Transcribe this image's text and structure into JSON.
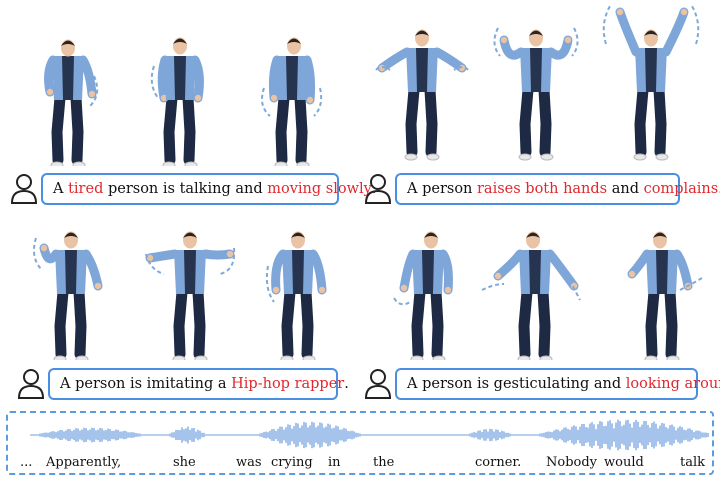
{
  "colors": {
    "accent": "#4a90e2",
    "highlight": "#e0282e",
    "shirt": "#7ea6d8",
    "jeans": "#1e2a44",
    "arrow": "#7fa8d8"
  },
  "panels": [
    {
      "id": "tired",
      "parts": [
        {
          "t": "A ",
          "h": false
        },
        {
          "t": "tired",
          "h": true
        },
        {
          "t": " person is talking and ",
          "h": false
        },
        {
          "t": "moving slowly",
          "h": true
        },
        {
          "t": ".",
          "h": false
        }
      ]
    },
    {
      "id": "raise",
      "parts": [
        {
          "t": "A person ",
          "h": false
        },
        {
          "t": "raises both hands",
          "h": true
        },
        {
          "t": " and ",
          "h": false
        },
        {
          "t": "complains",
          "h": true
        },
        {
          "t": ".",
          "h": false
        }
      ]
    },
    {
      "id": "hiphop",
      "parts": [
        {
          "t": "A person is imitating a ",
          "h": false
        },
        {
          "t": "Hip-hop rapper",
          "h": true
        },
        {
          "t": ".",
          "h": false
        }
      ]
    },
    {
      "id": "look",
      "parts": [
        {
          "t": "A person is gesticulating and ",
          "h": false
        },
        {
          "t": "looking around",
          "h": true
        },
        {
          "t": ".",
          "h": false
        }
      ]
    }
  ],
  "transcript": [
    "...",
    "Apparently,",
    "she",
    "was",
    "crying",
    "in",
    "the",
    "corner.",
    "Nobody",
    "would",
    "talk"
  ]
}
